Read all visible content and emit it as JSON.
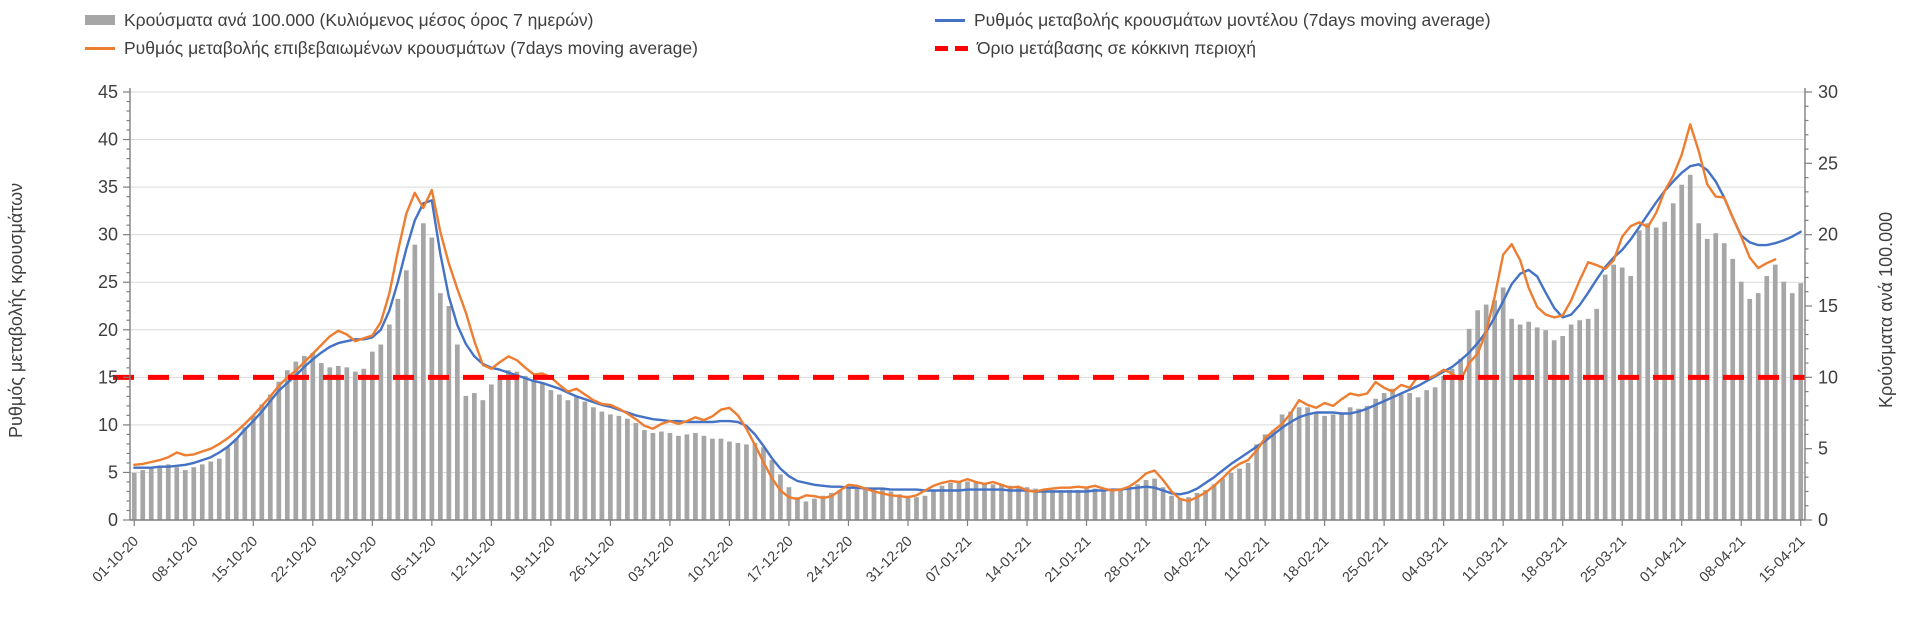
{
  "page": {
    "background": "#ffffff"
  },
  "colors": {
    "bars": "#a6a6a6",
    "confirmed_line": "#ed7d31",
    "model_line": "#4472c4",
    "threshold": "#ff0000",
    "gridline": "#d9d9d9",
    "axis_line": "#7f7f7f",
    "text": "#3f3f3f"
  },
  "legend": {
    "items": [
      {
        "label": "Κρούσματα ανά 100.000 (Κυλιόμενος μέσος όρος 7 ημερών)",
        "swatch": "bar-swatch",
        "color": "#a6a6a6"
      },
      {
        "label": "Ρυθμός μεταβολής επιβεβαιωμένων κρουσμάτων (7days moving average)",
        "swatch": "line-swatch",
        "color": "#ed7d31"
      },
      {
        "label": "Ρυθμός μεταβολής κρουσμάτων μοντέλου (7days moving average)",
        "swatch": "line-swatch",
        "color": "#4472c4"
      },
      {
        "label": "Όριο μετάβασης σε κόκκινη περιοχή",
        "swatch": "dash-swatch",
        "color": "#ff0000"
      }
    ]
  },
  "chart_data": {
    "type": "bar",
    "combo": "daily bars (right axis) + two 7-day moving-average lines (left axis) + horizontal threshold",
    "title": "",
    "grid": true,
    "legend_position": "top",
    "left_axis": {
      "title": "Ρυθμός μεταβολής κρουσμάτων",
      "min": 0,
      "max": 45,
      "step": 5
    },
    "right_axis": {
      "title": "Κρούσματα ανά 100.000",
      "min": 0,
      "max": 30,
      "step": 5
    },
    "threshold": {
      "name": "Όριο μετάβασης σε κόκκινη περιοχή",
      "value_left_axis": 15,
      "value_right_axis": 10,
      "color": "#ff0000"
    },
    "x_start_date": "01-10-20",
    "x_end_date": "15-04-21",
    "days_per_tick": 7,
    "x_tick_labels": [
      "01-10-20",
      "08-10-20",
      "15-10-20",
      "22-10-20",
      "29-10-20",
      "05-11-20",
      "12-11-20",
      "19-11-20",
      "26-11-20",
      "03-12-20",
      "10-12-20",
      "17-12-20",
      "24-12-20",
      "31-12-20",
      "07-01-21",
      "14-01-21",
      "21-01-21",
      "28-01-21",
      "04-02-21",
      "11-02-21",
      "18-02-21",
      "25-02-21",
      "04-03-21",
      "11-03-21",
      "18-03-21",
      "25-03-21",
      "01-04-21",
      "08-04-21",
      "15-04-21"
    ],
    "series": [
      {
        "name": "Κρούσματα ανά 100.000 (Κυλιόμενος μέσος όρος 7 ημερών)",
        "type": "bar",
        "axis": "right",
        "color": "#a6a6a6",
        "values": [
          3.3,
          3.5,
          3.6,
          3.8,
          3.9,
          3.7,
          3.5,
          3.7,
          3.9,
          4.1,
          4.3,
          5.1,
          5.7,
          6.5,
          7.3,
          8.1,
          8.8,
          9.7,
          10.5,
          11.1,
          11.5,
          11.7,
          11.0,
          10.7,
          10.8,
          10.7,
          10.4,
          10.6,
          11.8,
          12.3,
          13.7,
          15.5,
          17.5,
          19.3,
          20.8,
          19.8,
          15.9,
          15.0,
          12.3,
          8.7,
          8.9,
          8.4,
          9.5,
          10.1,
          10.5,
          10.4,
          10.1,
          9.8,
          9.6,
          9.1,
          8.8,
          8.4,
          8.6,
          8.3,
          7.9,
          7.6,
          7.4,
          7.3,
          7.1,
          6.8,
          6.3,
          6.1,
          6.2,
          6.1,
          5.9,
          6.0,
          6.1,
          5.9,
          5.7,
          5.7,
          5.5,
          5.4,
          5.3,
          5.4,
          5.1,
          4.2,
          3.2,
          2.3,
          1.6,
          1.3,
          1.5,
          1.7,
          1.9,
          2.1,
          2.2,
          2.3,
          2.3,
          2.2,
          2.2,
          2.0,
          1.8,
          1.7,
          1.6,
          1.7,
          2.1,
          2.4,
          2.6,
          2.7,
          2.7,
          2.7,
          2.6,
          2.5,
          2.5,
          2.4,
          2.3,
          2.3,
          2.2,
          2.1,
          2.1,
          2.1,
          2.1,
          2.1,
          2.2,
          2.2,
          2.1,
          2.1,
          2.2,
          2.3,
          2.5,
          2.8,
          2.9,
          2.3,
          1.7,
          1.5,
          1.6,
          1.9,
          2.1,
          2.5,
          2.9,
          3.3,
          3.6,
          4.0,
          5.3,
          6.0,
          6.3,
          7.4,
          7.6,
          7.9,
          7.9,
          7.5,
          7.3,
          7.4,
          7.5,
          7.9,
          7.8,
          8.0,
          8.5,
          8.9,
          9.2,
          8.8,
          8.9,
          8.6,
          9.1,
          9.3,
          10.1,
          10.6,
          11.3,
          13.4,
          14.7,
          15.1,
          15.4,
          16.3,
          14.1,
          13.7,
          13.9,
          13.5,
          13.3,
          12.6,
          12.9,
          13.7,
          14.0,
          14.1,
          14.8,
          17.2,
          17.9,
          17.7,
          17.1,
          20.3,
          20.8,
          20.5,
          20.9,
          22.2,
          23.5,
          24.2,
          20.8,
          19.7,
          20.1,
          19.4,
          18.3,
          16.7,
          15.5,
          15.9,
          17.1,
          17.9,
          16.7,
          15.9,
          16.6
        ]
      },
      {
        "name": "Ρυθμός μεταβολής κρουσμάτων μοντέλου (7days moving average)",
        "type": "line",
        "axis": "left",
        "color": "#4472c4",
        "values": [
          5.5,
          5.5,
          5.5,
          5.6,
          5.6,
          5.7,
          5.8,
          6.0,
          6.3,
          6.6,
          7.1,
          7.7,
          8.5,
          9.5,
          10.4,
          11.4,
          12.5,
          13.6,
          14.4,
          15.2,
          16.1,
          16.9,
          17.6,
          18.2,
          18.6,
          18.8,
          19.0,
          19.0,
          19.2,
          20.0,
          22.0,
          25.0,
          28.5,
          31.5,
          33.3,
          33.6,
          28.0,
          23.5,
          20.5,
          18.5,
          17.2,
          16.4,
          16.0,
          15.8,
          15.5,
          15.2,
          14.9,
          14.6,
          14.4,
          14.1,
          13.8,
          13.4,
          13.0,
          12.7,
          12.4,
          12.1,
          11.9,
          11.6,
          11.3,
          11.0,
          10.8,
          10.6,
          10.5,
          10.4,
          10.4,
          10.3,
          10.3,
          10.3,
          10.3,
          10.4,
          10.4,
          10.3,
          9.9,
          9.0,
          7.8,
          6.5,
          5.4,
          4.6,
          4.1,
          3.9,
          3.7,
          3.6,
          3.5,
          3.5,
          3.4,
          3.4,
          3.3,
          3.3,
          3.3,
          3.2,
          3.2,
          3.2,
          3.2,
          3.1,
          3.1,
          3.1,
          3.1,
          3.1,
          3.2,
          3.2,
          3.2,
          3.2,
          3.2,
          3.1,
          3.1,
          3.1,
          3.0,
          3.0,
          3.0,
          3.0,
          3.0,
          3.0,
          3.0,
          3.1,
          3.1,
          3.2,
          3.2,
          3.3,
          3.4,
          3.5,
          3.4,
          3.1,
          2.8,
          2.7,
          2.9,
          3.3,
          3.9,
          4.5,
          5.2,
          5.9,
          6.5,
          7.1,
          7.7,
          8.3,
          9.0,
          9.7,
          10.3,
          10.8,
          11.1,
          11.3,
          11.3,
          11.3,
          11.2,
          11.2,
          11.4,
          11.7,
          12.1,
          12.5,
          12.9,
          13.3,
          13.7,
          14.1,
          14.6,
          15.1,
          15.6,
          16.1,
          16.8,
          17.6,
          18.6,
          19.8,
          21.3,
          23.0,
          24.8,
          25.9,
          26.3,
          25.6,
          23.9,
          22.3,
          21.3,
          21.6,
          22.6,
          23.9,
          25.3,
          26.6,
          27.6,
          28.4,
          29.5,
          30.8,
          32.1,
          33.4,
          34.6,
          35.6,
          36.5,
          37.2,
          37.4,
          36.8,
          35.6,
          33.9,
          31.8,
          29.9,
          29.2,
          28.9,
          28.9,
          29.1,
          29.4,
          29.8,
          30.3
        ]
      },
      {
        "name": "Ρυθμός μεταβολής επιβεβαιωμένων κρουσμάτων (7days moving average)",
        "type": "line",
        "axis": "left",
        "color": "#ed7d31",
        "values": [
          5.8,
          5.9,
          6.1,
          6.3,
          6.6,
          7.1,
          6.8,
          6.9,
          7.2,
          7.5,
          8.0,
          8.6,
          9.3,
          10.1,
          11.0,
          12.0,
          13.0,
          14.1,
          15.0,
          15.7,
          16.6,
          17.5,
          18.4,
          19.3,
          19.9,
          19.5,
          18.8,
          19.1,
          19.4,
          20.8,
          23.8,
          28.2,
          32.2,
          34.4,
          32.8,
          34.7,
          30.3,
          27.0,
          24.3,
          21.8,
          18.8,
          16.3,
          15.9,
          16.6,
          17.2,
          16.8,
          16.0,
          15.3,
          15.4,
          15.0,
          14.2,
          13.5,
          13.8,
          13.2,
          12.6,
          12.2,
          12.1,
          11.7,
          11.2,
          10.6,
          9.9,
          9.6,
          10.1,
          10.4,
          10.1,
          10.4,
          10.8,
          10.5,
          10.9,
          11.6,
          11.8,
          11.0,
          9.6,
          7.9,
          6.1,
          4.4,
          3.1,
          2.4,
          2.2,
          2.6,
          2.5,
          2.3,
          2.5,
          3.1,
          3.7,
          3.6,
          3.3,
          3.0,
          2.8,
          2.6,
          2.5,
          2.4,
          2.6,
          3.1,
          3.6,
          3.9,
          4.1,
          4.0,
          4.3,
          4.0,
          3.8,
          4.0,
          3.7,
          3.4,
          3.5,
          3.1,
          3.0,
          3.2,
          3.3,
          3.4,
          3.4,
          3.5,
          3.4,
          3.6,
          3.3,
          3.1,
          3.2,
          3.5,
          4.1,
          4.9,
          5.2,
          4.2,
          3.0,
          2.2,
          2.0,
          2.4,
          2.9,
          3.6,
          4.4,
          5.3,
          5.9,
          6.3,
          7.3,
          8.6,
          9.4,
          10.1,
          11.2,
          12.6,
          12.1,
          11.8,
          12.3,
          12.0,
          12.7,
          13.3,
          13.1,
          13.3,
          14.5,
          13.9,
          13.5,
          14.2,
          13.9,
          15.1,
          14.8,
          15.2,
          15.8,
          15.4,
          14.7,
          16.5,
          17.5,
          19.8,
          23.5,
          27.9,
          29.0,
          27.3,
          24.4,
          22.4,
          21.6,
          21.3,
          21.5,
          23.1,
          25.2,
          27.1,
          26.8,
          26.4,
          27.3,
          29.8,
          30.9,
          31.3,
          30.8,
          32.3,
          34.6,
          36.2,
          38.4,
          41.6,
          38.8,
          35.3,
          34.0,
          33.9,
          31.8,
          29.8,
          27.6,
          26.5,
          27.0,
          27.4
        ]
      }
    ]
  }
}
